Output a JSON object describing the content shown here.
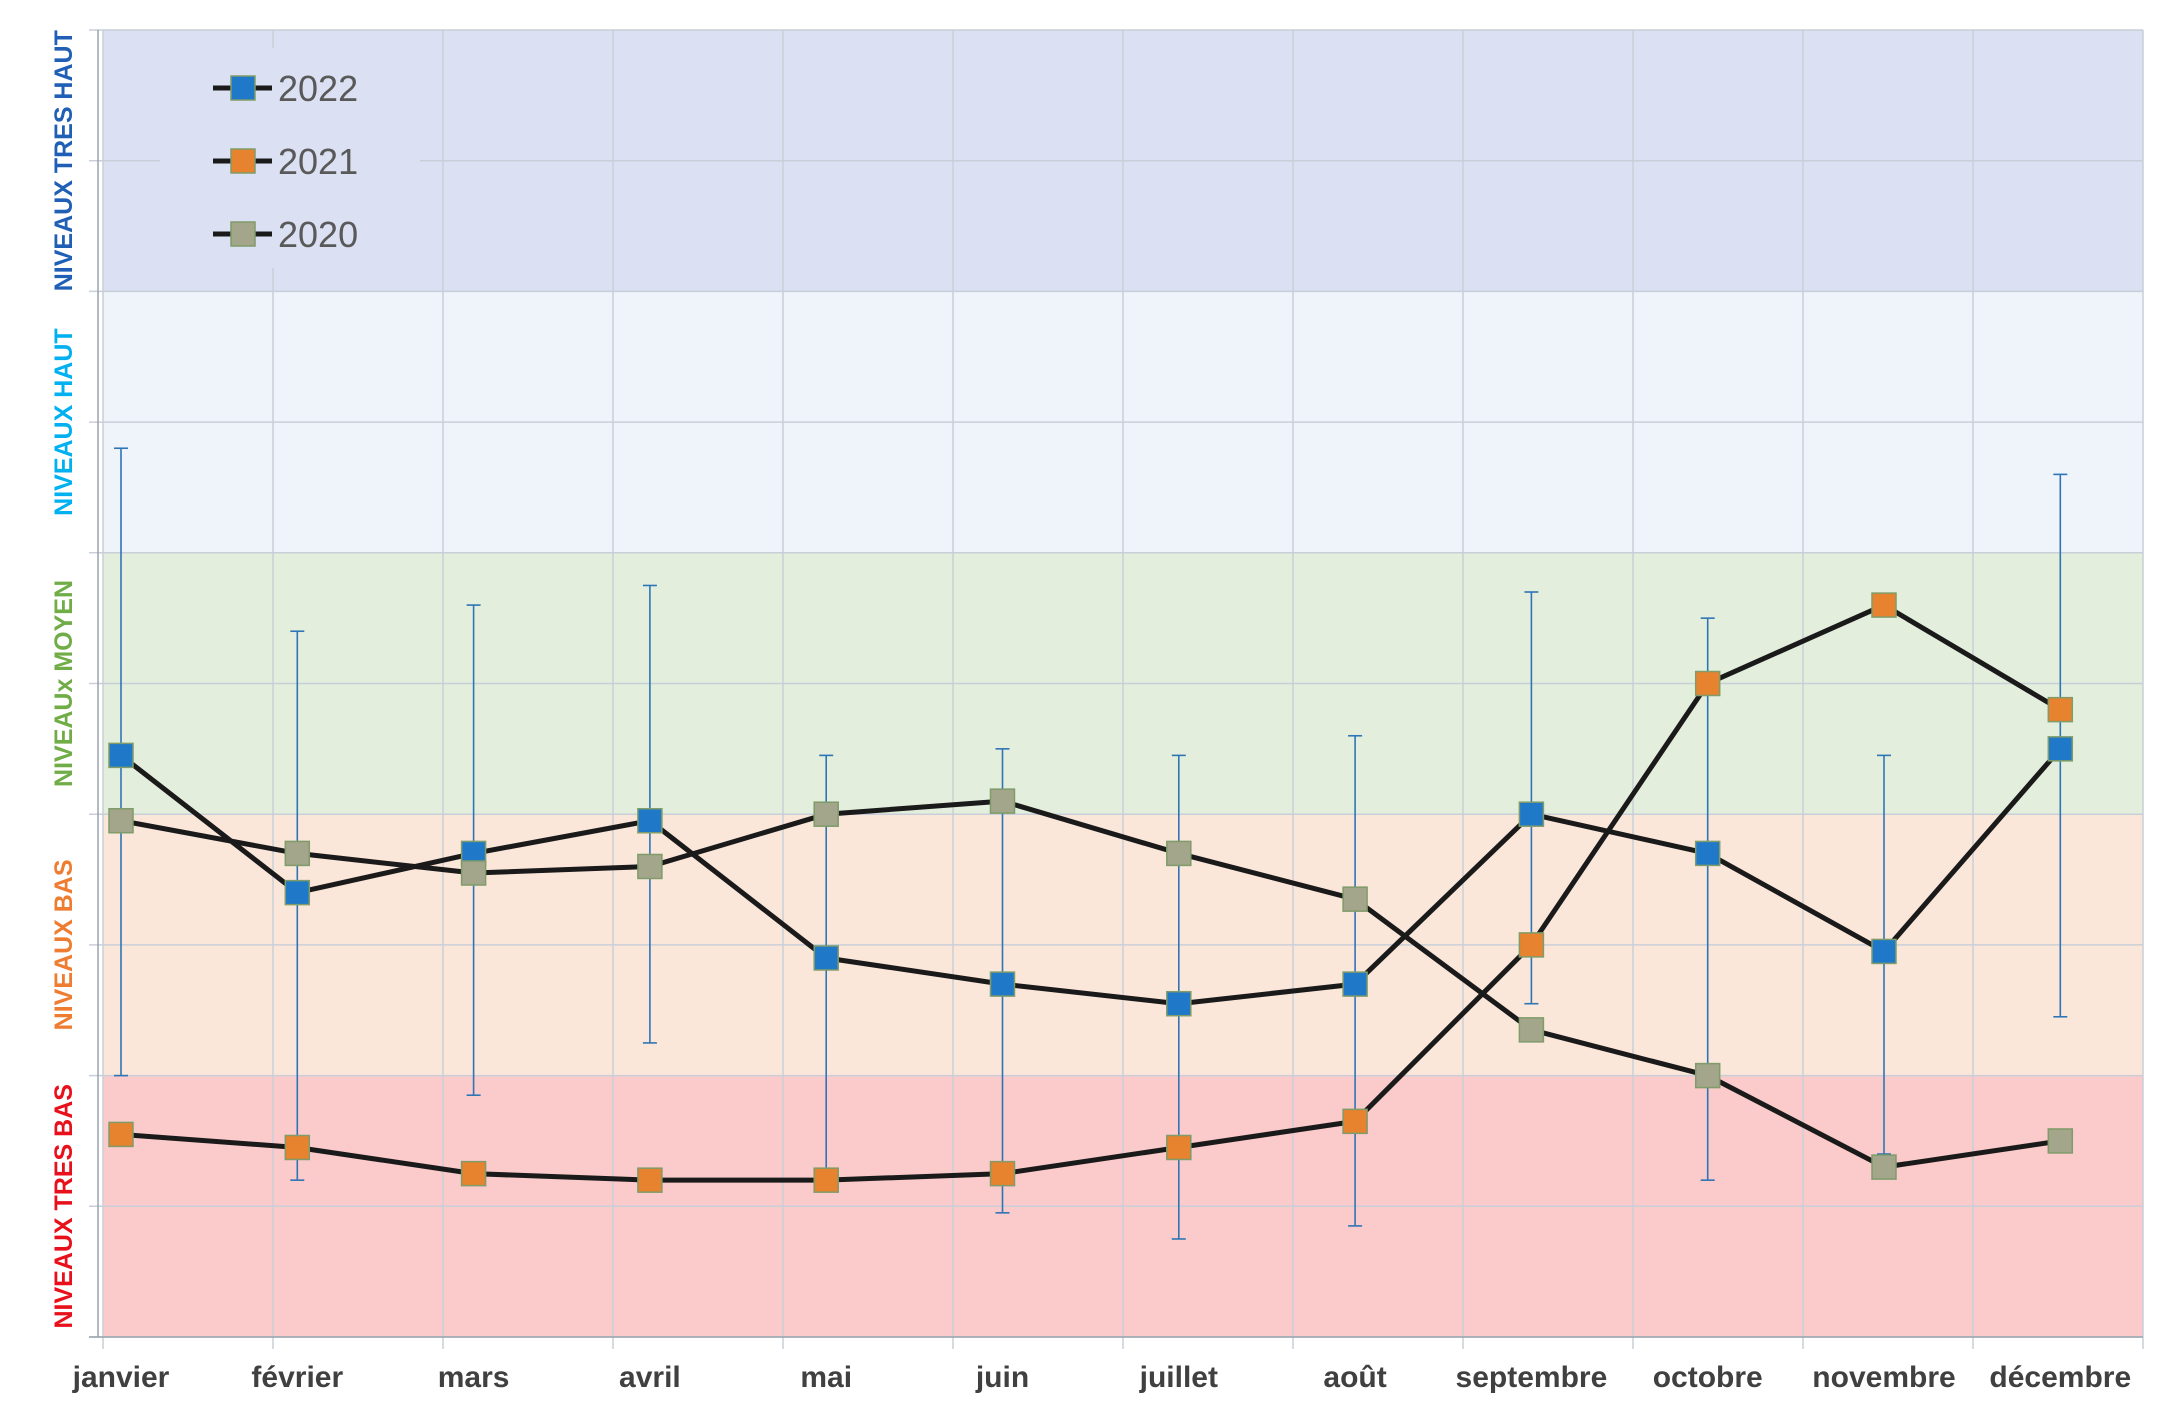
{
  "chart_data": {
    "type": "line",
    "categories": [
      "janvier",
      "février",
      "mars",
      "avril",
      "mai",
      "juin",
      "juillet",
      "août",
      "septembre",
      "octobre",
      "novembre",
      "décembre"
    ],
    "ylim": [
      0,
      10
    ],
    "grid": true,
    "legend_position": "top-left",
    "bands": [
      {
        "label": "NIVEAUX TRES BAS",
        "from": 0,
        "to": 2,
        "fill": "#fbcaca",
        "color": "#e8101a"
      },
      {
        "label": "NIVEAUX BAS",
        "from": 2,
        "to": 4,
        "fill": "#fbe6da",
        "color": "#ee7d31"
      },
      {
        "label": "NIVEAUx MOYEN",
        "from": 4,
        "to": 6,
        "fill": "#e3efdc",
        "color": "#70ad46"
      },
      {
        "label": "NIVEAUX HAUT",
        "from": 6,
        "to": 8,
        "fill": "#eff3fa",
        "color": "#00b0f0"
      },
      {
        "label": "NIVEAUX TRES HAUT",
        "from": 8,
        "to": 10,
        "fill": "#dbe1f3",
        "color": "#1f5fb5"
      }
    ],
    "series": [
      {
        "name": "2022",
        "marker_color": "#1f78c8",
        "line_color": "#1a1a1a",
        "values": [
          4.45,
          3.4,
          3.7,
          3.95,
          2.9,
          2.7,
          2.55,
          2.7,
          4.0,
          3.7,
          2.95,
          4.5
        ]
      },
      {
        "name": "2021",
        "marker_color": "#e7822e",
        "line_color": "#1a1a1a",
        "values": [
          1.55,
          1.45,
          1.25,
          1.2,
          1.2,
          1.25,
          1.45,
          1.65,
          3.0,
          5.0,
          5.6,
          4.8
        ]
      },
      {
        "name": "2020",
        "marker_color": "#a3a68a",
        "line_color": "#1a1a1a",
        "values": [
          3.95,
          3.7,
          3.55,
          3.6,
          4.0,
          4.1,
          3.7,
          3.35,
          2.35,
          2.0,
          1.3,
          1.5
        ]
      }
    ],
    "error_bars": {
      "series": "2022",
      "color": "#2e75b6",
      "upper": [
        6.8,
        5.4,
        5.6,
        5.75,
        4.45,
        4.5,
        4.45,
        4.6,
        5.7,
        5.5,
        4.45,
        6.6
      ],
      "lower": [
        2.0,
        1.2,
        1.85,
        2.25,
        1.2,
        0.95,
        0.75,
        0.85,
        2.55,
        1.2,
        1.4,
        2.45
      ]
    }
  }
}
